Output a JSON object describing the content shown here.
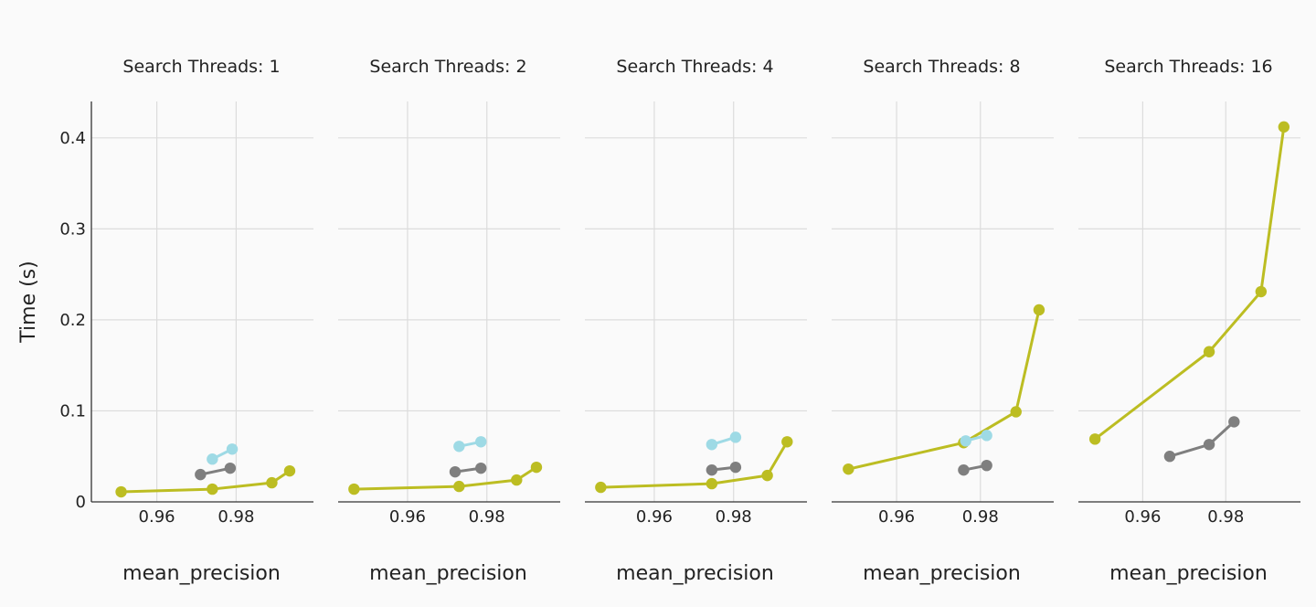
{
  "figure": {
    "ylabel": "Time (s)",
    "xlabel": "mean_precision"
  },
  "colors": {
    "background": "#fafafa",
    "olive": "#bcbd22",
    "gray": "#7f7f7f",
    "lightblue": "#9edae5"
  },
  "chart_data": [
    {
      "type": "line",
      "title": "Search Threads: 1",
      "xlabel": "mean_precision",
      "ylabel": "Time (s)",
      "xticks": [
        0.96,
        0.98
      ],
      "yticks": [
        0,
        0.1,
        0.2,
        0.3,
        0.4
      ],
      "ytick_labels": [
        "0",
        "0.1",
        "0.2",
        "0.3",
        "0.4"
      ],
      "xlim": [
        0.9435,
        0.9995
      ],
      "ylim": [
        0,
        0.44
      ],
      "grid": true,
      "series": [
        {
          "color": "olive",
          "x": [
            0.951,
            0.974,
            0.989,
            0.9935
          ],
          "y": [
            0.011,
            0.014,
            0.021,
            0.034
          ]
        },
        {
          "color": "gray",
          "x": [
            0.971,
            0.9785
          ],
          "y": [
            0.03,
            0.037
          ]
        },
        {
          "color": "lightblue",
          "x": [
            0.974,
            0.979
          ],
          "y": [
            0.047,
            0.058
          ]
        }
      ]
    },
    {
      "type": "line",
      "title": "Search Threads: 2",
      "xlabel": "mean_precision",
      "ylabel": "",
      "xticks": [
        0.96,
        0.98
      ],
      "yticks": [
        0,
        0.1,
        0.2,
        0.3,
        0.4
      ],
      "ytick_labels": [],
      "xlim": [
        0.9425,
        0.9985
      ],
      "ylim": [
        0,
        0.44
      ],
      "grid": true,
      "series": [
        {
          "color": "olive",
          "x": [
            0.9465,
            0.973,
            0.9875,
            0.9925
          ],
          "y": [
            0.014,
            0.017,
            0.024,
            0.038
          ]
        },
        {
          "color": "gray",
          "x": [
            0.972,
            0.9785
          ],
          "y": [
            0.033,
            0.037
          ]
        },
        {
          "color": "lightblue",
          "x": [
            0.973,
            0.9785
          ],
          "y": [
            0.061,
            0.066
          ]
        }
      ]
    },
    {
      "type": "line",
      "title": "Search Threads: 4",
      "xlabel": "mean_precision",
      "ylabel": "",
      "xticks": [
        0.96,
        0.98
      ],
      "yticks": [
        0,
        0.1,
        0.2,
        0.3,
        0.4
      ],
      "ytick_labels": [],
      "xlim": [
        0.9425,
        0.9985
      ],
      "ylim": [
        0,
        0.44
      ],
      "grid": true,
      "series": [
        {
          "color": "olive",
          "x": [
            0.9465,
            0.9745,
            0.9885,
            0.9935
          ],
          "y": [
            0.016,
            0.02,
            0.029,
            0.066
          ]
        },
        {
          "color": "gray",
          "x": [
            0.9745,
            0.9805
          ],
          "y": [
            0.035,
            0.038
          ]
        },
        {
          "color": "lightblue",
          "x": [
            0.9745,
            0.9805
          ],
          "y": [
            0.063,
            0.071
          ]
        }
      ]
    },
    {
      "type": "line",
      "title": "Search Threads: 8",
      "xlabel": "mean_precision",
      "ylabel": "",
      "xticks": [
        0.96,
        0.98
      ],
      "yticks": [
        0,
        0.1,
        0.2,
        0.3,
        0.4
      ],
      "ytick_labels": [],
      "xlim": [
        0.9445,
        0.9975
      ],
      "ylim": [
        0,
        0.44
      ],
      "grid": true,
      "series": [
        {
          "color": "olive",
          "x": [
            0.9485,
            0.976,
            0.9885,
            0.994
          ],
          "y": [
            0.036,
            0.065,
            0.099,
            0.211
          ]
        },
        {
          "color": "gray",
          "x": [
            0.976,
            0.9815
          ],
          "y": [
            0.035,
            0.04
          ]
        },
        {
          "color": "lightblue",
          "x": [
            0.9765,
            0.9815
          ],
          "y": [
            0.067,
            0.073
          ]
        }
      ]
    },
    {
      "type": "line",
      "title": "Search Threads: 16",
      "xlabel": "mean_precision",
      "ylabel": "",
      "xticks": [
        0.96,
        0.98
      ],
      "yticks": [
        0,
        0.1,
        0.2,
        0.3,
        0.4
      ],
      "ytick_labels": [],
      "xlim": [
        0.9445,
        0.998
      ],
      "ylim": [
        0,
        0.44
      ],
      "grid": true,
      "series": [
        {
          "color": "olive",
          "x": [
            0.9485,
            0.976,
            0.9885,
            0.994
          ],
          "y": [
            0.069,
            0.165,
            0.231,
            0.412
          ]
        },
        {
          "color": "gray",
          "x": [
            0.9665,
            0.976,
            0.982
          ],
          "y": [
            0.05,
            0.063,
            0.088
          ]
        }
      ]
    }
  ]
}
